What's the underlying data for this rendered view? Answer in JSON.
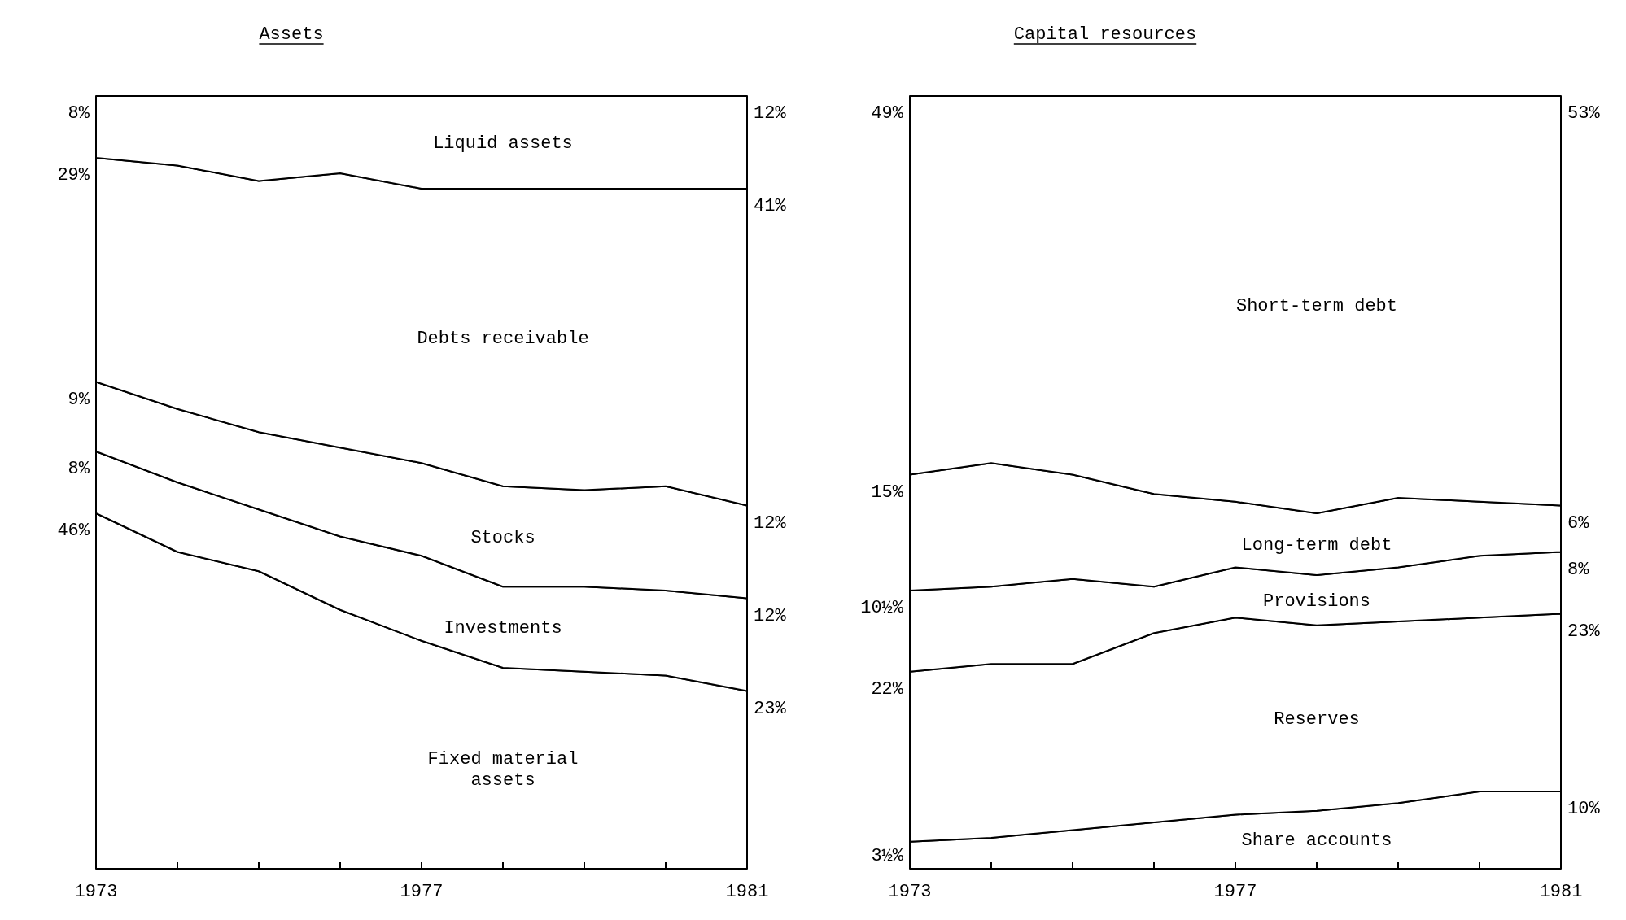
{
  "chart_data": [
    {
      "type": "area",
      "title": "Assets",
      "stacked": true,
      "x": [
        1973,
        1974,
        1975,
        1976,
        1977,
        1978,
        1979,
        1980,
        1981
      ],
      "xlim": [
        1973,
        1981
      ],
      "xticks": [
        1973,
        {
          "value": 1974,
          "label": null
        },
        {
          "value": 1975,
          "label": null
        },
        {
          "value": 1976,
          "label": null
        },
        1977,
        {
          "value": 1978,
          "label": null
        },
        {
          "value": 1979,
          "label": null
        },
        {
          "value": 1980,
          "label": null
        },
        1981
      ],
      "series": [
        {
          "name": "Fixed material assets",
          "color": "#ffffff",
          "values": [
            46,
            41,
            38.5,
            33.5,
            29.5,
            26,
            25.5,
            25,
            23
          ],
          "value_labels": [
            "46%",
            null,
            null,
            null,
            null,
            null,
            null,
            null,
            "23%"
          ]
        },
        {
          "name": "Investments",
          "color": "#ffffff",
          "values": [
            8,
            9,
            8,
            9.5,
            11,
            10.5,
            11,
            11,
            12
          ],
          "value_labels": [
            "8%",
            null,
            null,
            null,
            null,
            null,
            null,
            null,
            "12%"
          ]
        },
        {
          "name": "Stocks",
          "color": "#ffffff",
          "values": [
            9,
            9.5,
            10,
            11.5,
            12,
            13,
            12.5,
            13.5,
            12
          ],
          "value_labels": [
            "9%",
            null,
            null,
            null,
            null,
            null,
            null,
            null,
            "12%"
          ]
        },
        {
          "name": "Debts receivable",
          "color": "#ffffff",
          "values": [
            29,
            31.5,
            32.5,
            35.5,
            35.5,
            38.5,
            39,
            38.5,
            41
          ],
          "value_labels": [
            "29%",
            null,
            null,
            null,
            null,
            null,
            null,
            null,
            "41%"
          ]
        },
        {
          "name": "Liquid assets",
          "color": "#ffffff",
          "values": [
            8,
            9,
            11,
            10,
            12,
            12,
            12,
            12,
            12
          ],
          "value_labels": [
            "8%",
            null,
            null,
            null,
            null,
            null,
            null,
            null,
            "12%"
          ]
        }
      ]
    },
    {
      "type": "area",
      "title": "Capital resources",
      "stacked": true,
      "x": [
        1973,
        1974,
        1975,
        1976,
        1977,
        1978,
        1979,
        1980,
        1981
      ],
      "xlim": [
        1973,
        1981
      ],
      "xticks": [
        1973,
        {
          "value": 1974,
          "label": null
        },
        {
          "value": 1975,
          "label": null
        },
        {
          "value": 1976,
          "label": null
        },
        1977,
        {
          "value": 1978,
          "label": null
        },
        {
          "value": 1979,
          "label": null
        },
        {
          "value": 1980,
          "label": null
        },
        1981
      ],
      "series": [
        {
          "name": "Share accounts",
          "color": "#ffffff",
          "values": [
            3.5,
            4,
            5,
            6,
            7,
            7.5,
            8.5,
            10,
            10
          ],
          "value_labels": [
            "3½%",
            null,
            null,
            null,
            null,
            null,
            null,
            null,
            "10%"
          ]
        },
        {
          "name": "Reserves",
          "color": "#ffffff",
          "values": [
            22,
            22.5,
            21.5,
            24.5,
            25.5,
            24,
            23.5,
            22.5,
            23
          ],
          "value_labels": [
            "22%",
            null,
            null,
            null,
            null,
            null,
            null,
            null,
            "23%"
          ]
        },
        {
          "name": "Provisions",
          "color": "#ffffff",
          "values": [
            10.5,
            10,
            11,
            6,
            6.5,
            6.5,
            7,
            8,
            8
          ],
          "value_labels": [
            "10½%",
            null,
            null,
            null,
            null,
            null,
            null,
            null,
            "8%"
          ]
        },
        {
          "name": "Long-term debt",
          "color": "#ffffff",
          "values": [
            15,
            16,
            13.5,
            12,
            8.5,
            8,
            9,
            7,
            6
          ],
          "value_labels": [
            "15%",
            null,
            null,
            null,
            null,
            null,
            null,
            null,
            "6%"
          ]
        },
        {
          "name": "Short-term debt",
          "color": "#ffffff",
          "values": [
            49,
            47.5,
            49,
            51.5,
            52.5,
            54,
            52,
            52.5,
            53
          ],
          "value_labels": [
            "49%",
            null,
            null,
            null,
            null,
            null,
            null,
            null,
            "53%"
          ]
        }
      ]
    }
  ]
}
